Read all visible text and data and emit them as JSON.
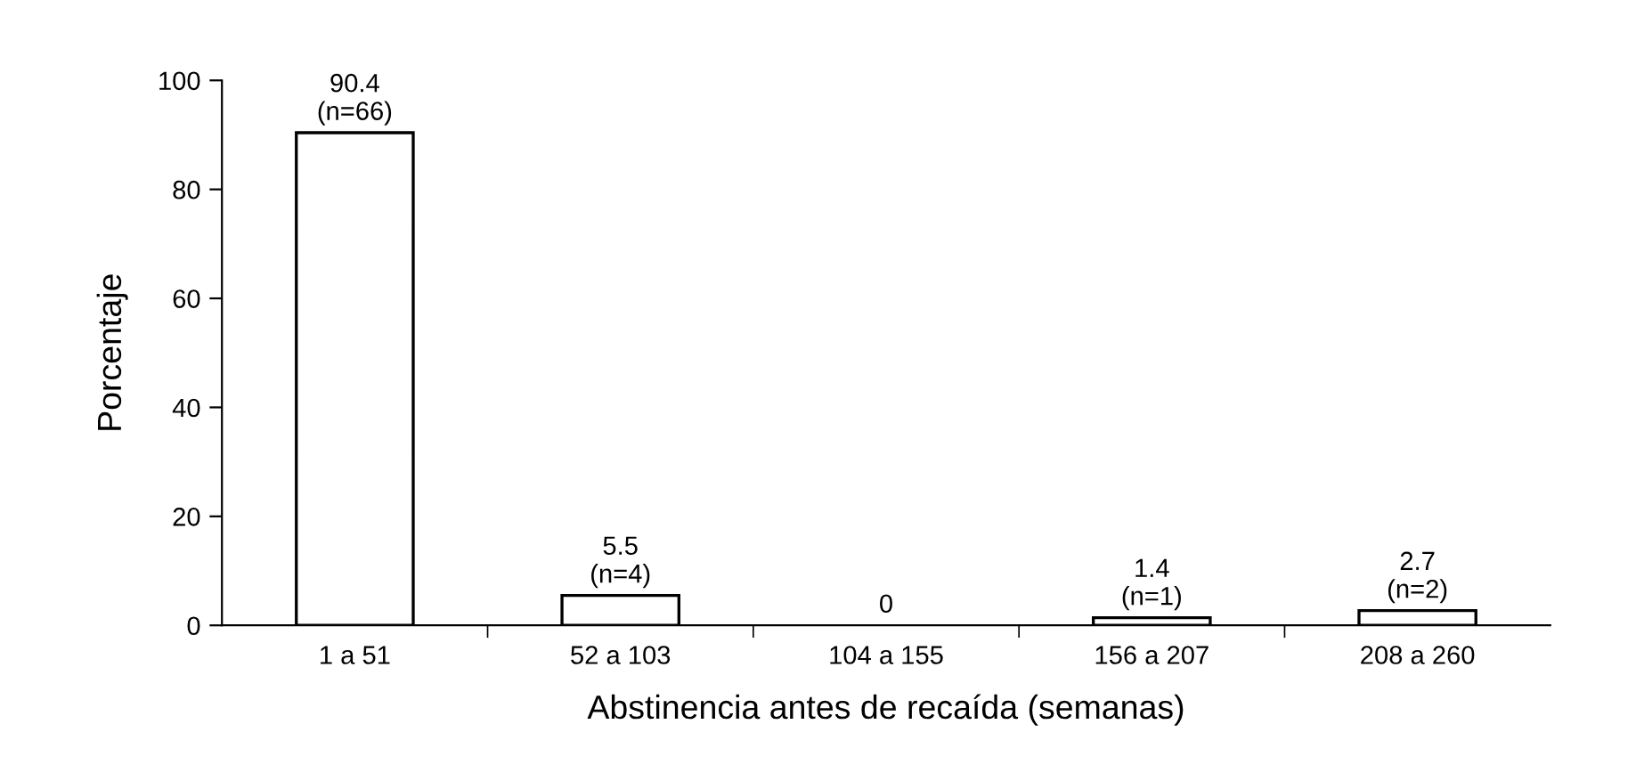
{
  "chart_data": {
    "type": "bar",
    "xlabel": "Abstinencia antes de recaída (semanas)",
    "ylabel": "Porcentaje",
    "categories": [
      "1 a 51",
      "52 a 103",
      "104 a 155",
      "156 a 207",
      "208 a 260"
    ],
    "values": [
      90.4,
      5.5,
      0,
      1.4,
      2.7
    ],
    "value_labels": [
      "90.4\n(n=66)",
      "5.5\n(n=4)",
      "0",
      "1.4\n(n=1)",
      "2.7\n(n=2)"
    ],
    "color": "#ffffff",
    "ylim": [
      0,
      100
    ],
    "yticks": [
      0,
      20,
      40,
      60,
      80,
      100
    ],
    "grid": false,
    "legend": false
  }
}
